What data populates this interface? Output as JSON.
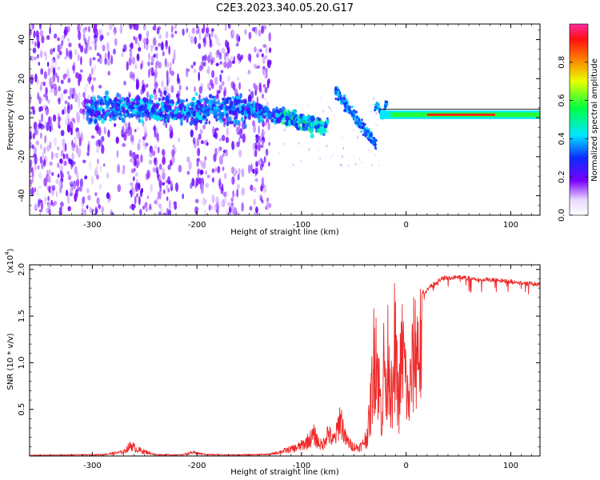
{
  "title": "C2E3.2023.340.05.20.G17",
  "chart_data": [
    {
      "type": "heatmap",
      "xlabel": "Height of straight line (km)",
      "ylabel": "Frequency (Hz)",
      "xlim": [
        -360,
        128
      ],
      "ylim": [
        -50,
        48
      ],
      "xticks": [
        -300,
        -200,
        -100,
        0,
        100
      ],
      "yticks": [
        -40,
        -20,
        0,
        20,
        40
      ],
      "colorbar": {
        "label": "Normalized spectral amplitude",
        "range": [
          0,
          1
        ],
        "ticks": [
          0.0,
          0.2,
          0.4,
          0.6,
          0.8
        ]
      },
      "features": {
        "signal_center_freq_hz": 1.5,
        "noise_region_x": [
          -360,
          -130
        ],
        "steady_tone_x": [
          -25,
          128
        ]
      }
    },
    {
      "type": "line",
      "xlabel": "Height of straight line (km)",
      "ylabel": "SNR (10 * v/v)",
      "y_multiplier_label": "(x10",
      "y_multiplier_exp": "4",
      "xlim": [
        -360,
        128
      ],
      "ylim": [
        0,
        2.05
      ],
      "xticks": [
        -300,
        -200,
        -100,
        0,
        100
      ],
      "yticks": [
        0.5,
        1.0,
        1.5,
        2.0
      ],
      "color": "#ee2a2a",
      "envelope": {
        "x": [
          -360,
          -320,
          -290,
          -270,
          -263,
          -258,
          -240,
          -215,
          -205,
          -190,
          -160,
          -130,
          -118,
          -105,
          -97,
          -92,
          -88,
          -84,
          -80,
          -75,
          -70,
          -67,
          -63,
          -58,
          -52,
          -46,
          -42,
          -38,
          -35,
          -33,
          -31,
          -29,
          -27,
          -25,
          -23,
          -21,
          -19,
          -17,
          -15,
          -13,
          -11,
          -9,
          -7,
          -5,
          -3,
          -1,
          2,
          5,
          8,
          12,
          18,
          25,
          35,
          50,
          70,
          90,
          110,
          128
        ],
        "y": [
          0.01,
          0.015,
          0.02,
          0.06,
          0.16,
          0.1,
          0.02,
          0.015,
          0.05,
          0.02,
          0.015,
          0.025,
          0.07,
          0.12,
          0.18,
          0.25,
          0.31,
          0.2,
          0.15,
          0.35,
          0.22,
          0.3,
          0.58,
          0.25,
          0.15,
          0.12,
          0.16,
          0.3,
          0.6,
          1.05,
          1.55,
          1.9,
          1.35,
          0.95,
          0.6,
          1.7,
          0.9,
          1.95,
          1.2,
          0.7,
          1.85,
          1.3,
          0.85,
          1.5,
          1.75,
          1.35,
          0.82,
          1.3,
          1.75,
          1.8,
          1.78,
          1.86,
          1.93,
          1.94,
          1.92,
          1.91,
          1.88,
          1.86
        ]
      }
    }
  ]
}
